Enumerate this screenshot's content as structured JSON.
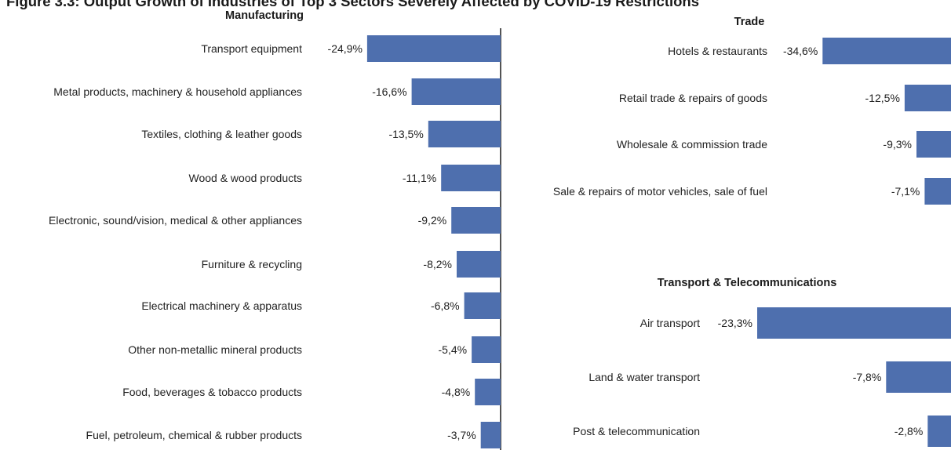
{
  "figure": {
    "title": "Figure 3.3: Output Growth of Industries of Top 3 Sectors Severely Affected by COVID-19 Restrictions"
  },
  "colors": {
    "bar": "#4e6fae",
    "axis": "#1a1a1a",
    "text": "#222222"
  },
  "chart_data": [
    {
      "type": "bar",
      "orientation": "horizontal",
      "title": "Manufacturing",
      "unit": "%",
      "categories": [
        "Transport equipment",
        "Metal products, machinery & household appliances",
        "Textiles,  clothing & leather goods",
        "Wood & wood products",
        "Electronic, sound/vision, medical & other appliances",
        "Furniture & recycling",
        "Electrical machinery & apparatus",
        "Other non-metallic mineral products",
        "Food, beverages & tobacco products",
        "Fuel, petroleum, chemical & rubber products"
      ],
      "values": [
        -24.9,
        -16.6,
        -13.5,
        -11.1,
        -9.2,
        -8.2,
        -6.8,
        -5.4,
        -4.8,
        -3.7
      ],
      "labels": [
        "-24,9%",
        "-16,6%",
        "-13,5%",
        "-11,1%",
        "-9,2%",
        "-8,2%",
        "-6,8%",
        "-5,4%",
        "-4,8%",
        "-3,7%"
      ]
    },
    {
      "type": "bar",
      "orientation": "horizontal",
      "title": "Trade",
      "unit": "%",
      "categories": [
        "Hotels & restaurants",
        "Retail trade & repairs of goods",
        "Wholesale & commission trade",
        "Sale & repairs of motor vehicles, sale of fuel"
      ],
      "values": [
        -34.6,
        -12.5,
        -9.3,
        -7.1
      ],
      "labels": [
        "-34,6%",
        "-12,5%",
        "-9,3%",
        "-7,1%"
      ]
    },
    {
      "type": "bar",
      "orientation": "horizontal",
      "title": "Transport & Telecommunications",
      "unit": "%",
      "categories": [
        "Air transport",
        "Land & water transport",
        "Post & telecommunication"
      ],
      "values": [
        -23.3,
        -7.8,
        -2.8
      ],
      "labels": [
        "-23,3%",
        "-7,8%",
        "-2,8%"
      ]
    }
  ]
}
